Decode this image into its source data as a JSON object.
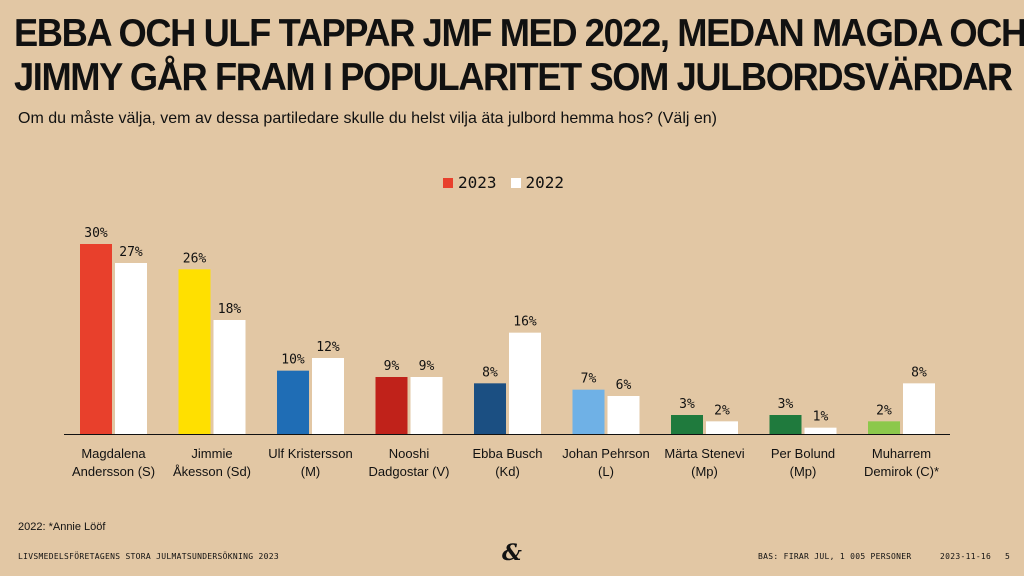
{
  "header": {
    "title_line1": "EBBA OCH ULF TAPPAR JMF MED 2022, MEDAN MAGDA OCH",
    "title_line2": "JIMMY GÅR FRAM I POPULARITET SOM JULBORDSVÄRDAR",
    "subtitle": "Om du måste välja, vem av dessa partiledare skulle du helst vilja äta julbord hemma hos? (Välj en)"
  },
  "legend": [
    {
      "label": "2023",
      "color": "#e8402c"
    },
    {
      "label": "2022",
      "color": "#ffffff"
    }
  ],
  "chart_data": {
    "type": "bar",
    "title": "EBBA OCH ULF TAPPAR JMF MED 2022, MEDAN MAGDA OCH JIMMY GÅR FRAM I POPULARITET SOM JULBORDSVÄRDAR",
    "xlabel": "",
    "ylabel": "",
    "ylim": [
      0,
      30
    ],
    "grid": false,
    "legend_position": "top-center",
    "categories": [
      [
        "Magdalena",
        "Andersson (S)"
      ],
      [
        "Jimmie",
        "Åkesson (Sd)"
      ],
      [
        "Ulf Kristersson",
        "(M)"
      ],
      [
        "Nooshi",
        "Dadgostar (V)"
      ],
      [
        "Ebba Busch",
        "(Kd)"
      ],
      [
        "Johan Pehrson",
        "(L)"
      ],
      [
        "Märta Stenevi",
        "(Mp)"
      ],
      [
        "Per Bolund",
        "(Mp)"
      ],
      [
        "Muharrem",
        "Demirok (C)*"
      ]
    ],
    "series": [
      {
        "name": "2023",
        "values": [
          30,
          26,
          10,
          9,
          8,
          7,
          3,
          3,
          2
        ],
        "labels": [
          "30%",
          "26%",
          "10%",
          "9%",
          "8%",
          "7%",
          "3%",
          "3%",
          "2%"
        ],
        "colors": [
          "#e8402c",
          "#ffe000",
          "#1f6db5",
          "#c0221a",
          "#1b4f82",
          "#6fb1e6",
          "#1f7a3d",
          "#1f7a3d",
          "#8cc84b"
        ]
      },
      {
        "name": "2022",
        "values": [
          27,
          18,
          12,
          9,
          16,
          6,
          2,
          1,
          8
        ],
        "labels": [
          "27%",
          "18%",
          "12%",
          "9%",
          "16%",
          "6%",
          "2%",
          "1%",
          "8%"
        ],
        "colors": [
          "#ffffff",
          "#ffffff",
          "#ffffff",
          "#ffffff",
          "#ffffff",
          "#ffffff",
          "#ffffff",
          "#ffffff",
          "#ffffff"
        ]
      }
    ]
  },
  "note": "2022: *Annie Lööf",
  "footer": {
    "left": "LIVSMEDELSFÖRETAGENS STORA JULMATSUNDERSÖKNING 2023",
    "base": "BAS: FIRAR JUL, 1 005 PERSONER",
    "date": "2023-11-16",
    "page": "5",
    "logo_glyph": "&"
  }
}
